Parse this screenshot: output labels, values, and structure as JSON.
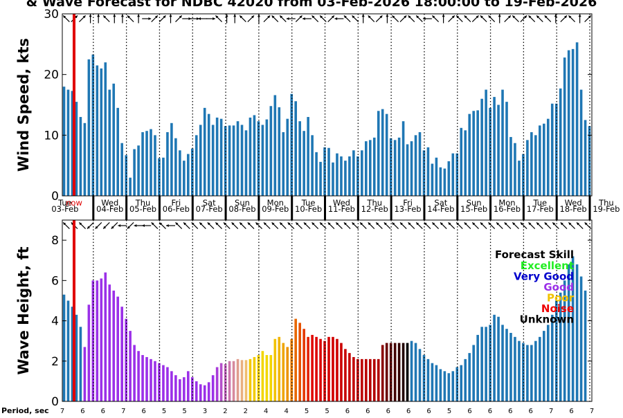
{
  "title": "& Wave Forecast for NDBC 42020 from 03-Feb-2026 18:00:00 to 19-Feb-2026",
  "now_label": "now",
  "period_label": "Period, sec",
  "days": [
    {
      "dow": "Tue",
      "date": "03-Feb"
    },
    {
      "dow": "Wed",
      "date": "04-Feb"
    },
    {
      "dow": "Thu",
      "date": "05-Feb"
    },
    {
      "dow": "Fri",
      "date": "06-Feb"
    },
    {
      "dow": "Sat",
      "date": "07-Feb"
    },
    {
      "dow": "Sun",
      "date": "08-Feb"
    },
    {
      "dow": "Mon",
      "date": "09-Feb"
    },
    {
      "dow": "Tue",
      "date": "10-Feb"
    },
    {
      "dow": "Wed",
      "date": "11-Feb"
    },
    {
      "dow": "Thu",
      "date": "12-Feb"
    },
    {
      "dow": "Fri",
      "date": "13-Feb"
    },
    {
      "dow": "Sat",
      "date": "14-Feb"
    },
    {
      "dow": "Sun",
      "date": "15-Feb"
    },
    {
      "dow": "Mon",
      "date": "16-Feb"
    },
    {
      "dow": "Tue",
      "date": "17-Feb"
    },
    {
      "dow": "Wed",
      "date": "18-Feb"
    },
    {
      "dow": "Thu",
      "date": "19-Feb"
    }
  ],
  "periods": [
    "7",
    "6",
    "6",
    "7",
    "6",
    "5",
    "5",
    "3",
    "2",
    "2",
    "4",
    "4",
    "5",
    "5",
    "6",
    "6",
    "6",
    "6",
    "6",
    "5",
    "6",
    "6",
    "6",
    "6",
    "7",
    "6",
    "7"
  ],
  "legend": {
    "title": "Forecast Skill",
    "items": [
      {
        "label": "Excellent",
        "color": "#22ee22"
      },
      {
        "label": "Very Good",
        "color": "#0000cc"
      },
      {
        "label": "Good",
        "color": "#9b30e8"
      },
      {
        "label": "Poor",
        "color": "#f2c200"
      },
      {
        "label": "Noise",
        "color": "#ee0000"
      },
      {
        "label": "Unknown",
        "color": "#000000"
      }
    ]
  },
  "chart_data": [
    {
      "type": "bar",
      "ylabel": "Wind Speed, kts",
      "ylim": [
        0,
        30
      ],
      "yticks": [
        0,
        10,
        20,
        30
      ],
      "bar_color": "#1f77b4",
      "x_start": "03-Feb-2026 18:00",
      "x_step_hours": 3,
      "values": [
        18,
        17.5,
        17.3,
        15.5,
        13,
        12,
        22.5,
        23.3,
        21.5,
        21,
        22,
        17.5,
        18.5,
        14.5,
        8.7,
        6.7,
        3,
        7.7,
        8.3,
        10.5,
        10.7,
        11,
        10,
        6.2,
        6.3,
        10.5,
        12,
        9.5,
        7.5,
        5.8,
        6.9,
        7.8,
        10,
        11.7,
        14.5,
        13.5,
        11.7,
        12.9,
        12.7,
        11.5,
        11.6,
        11.6,
        12.3,
        11.7,
        10.8,
        12.9,
        13.3,
        12.3,
        11.7,
        12.6,
        14.8,
        16.6,
        14.6,
        10.5,
        12.7,
        16.8,
        15.6,
        12.3,
        10.7,
        13,
        10,
        7.2,
        5.6,
        8,
        7.9,
        5.5,
        7,
        6.5,
        5.8,
        6.5,
        7.5,
        6.5,
        7.5,
        9,
        9.2,
        9.6,
        14,
        14.3,
        13.5,
        9.5,
        9.2,
        9.6,
        12.3,
        8.5,
        9,
        10,
        10.5,
        7.5,
        8,
        5.3,
        6.3,
        4.7,
        4.5,
        5.7,
        7,
        7,
        11.2,
        10.8,
        13.5,
        14,
        14.1,
        16,
        17.5,
        14.5,
        16.3,
        15,
        17.5,
        15.5,
        9.7,
        8.7,
        5.8,
        6.9,
        9.2,
        10.5,
        10,
        11.6,
        11.9,
        12.7,
        15.2,
        15.2,
        17.7,
        22.8,
        24,
        24.2,
        25.3,
        17.5,
        12.5,
        11.5
      ]
    },
    {
      "type": "bar",
      "ylabel": "Wave Height, ft",
      "ylim": [
        0,
        9
      ],
      "yticks": [
        0,
        2,
        4,
        6,
        8
      ],
      "x_start": "03-Feb-2026 18:00",
      "x_step_hours": 3,
      "values": [
        5.3,
        5,
        4.7,
        4.3,
        3.7,
        2.7,
        4.8,
        6,
        6,
        6.1,
        6.4,
        5.8,
        5.5,
        5.2,
        4.7,
        4.1,
        3.5,
        2.8,
        2.5,
        2.3,
        2.2,
        2.1,
        2,
        1.9,
        1.8,
        1.7,
        1.5,
        1.3,
        1.1,
        1.2,
        1.5,
        1.2,
        1,
        0.85,
        0.8,
        0.95,
        1.3,
        1.7,
        1.9,
        1.85,
        2,
        2,
        2.1,
        2.05,
        2.05,
        2.1,
        2.2,
        2.3,
        2.5,
        2.3,
        2.3,
        3.1,
        3.2,
        2.9,
        2.7,
        3.1,
        4.1,
        3.9,
        3.6,
        3.2,
        3.3,
        3.2,
        3.1,
        3,
        3.2,
        3.2,
        3.1,
        2.9,
        2.6,
        2.4,
        2.2,
        2.1,
        2.1,
        2.1,
        2.1,
        2.1,
        2.1,
        2.8,
        2.9,
        2.9,
        2.9,
        2.9,
        2.9,
        2.9,
        3,
        2.9,
        2.6,
        2.3,
        2.1,
        1.9,
        1.8,
        1.6,
        1.5,
        1.4,
        1.5,
        1.7,
        1.8,
        2.1,
        2.4,
        2.8,
        3.3,
        3.7,
        3.7,
        3.8,
        4.3,
        4.2,
        3.8,
        3.6,
        3.4,
        3.2,
        3,
        2.9,
        2.8,
        2.8,
        3,
        3.2,
        3.5,
        3.8,
        4.3,
        5,
        5.4,
        6,
        6.8,
        7.2,
        6.8,
        6.2,
        5.5
      ],
      "skill_colors": [
        "#1f77b4",
        "#1f77b4",
        "#1f77b4",
        "#1f77b4",
        "#1f77b4",
        "#9b30e8",
        "#9b30e8",
        "#9b30e8",
        "#9b30e8",
        "#9b30e8",
        "#9b30e8",
        "#9b30e8",
        "#9b30e8",
        "#9b30e8",
        "#9b30e8",
        "#9b30e8",
        "#9b30e8",
        "#9b30e8",
        "#9b30e8",
        "#9b30e8",
        "#9b30e8",
        "#9b30e8",
        "#9b30e8",
        "#9b30e8",
        "#9b30e8",
        "#9b30e8",
        "#9b30e8",
        "#9b30e8",
        "#9b30e8",
        "#9b30e8",
        "#9b30e8",
        "#9b30e8",
        "#9b30e8",
        "#9b30e8",
        "#9b30e8",
        "#9b30e8",
        "#9b30e8",
        "#a93cd9",
        "#b54fca",
        "#c062bb",
        "#cb76ac",
        "#d6899d",
        "#e09c8e",
        "#e9b07f",
        "#efbe70",
        "#f2c800",
        "#f2cc00",
        "#f2d100",
        "#f2d500",
        "#f2d700",
        "#f2d500",
        "#f2c200",
        "#f0b400",
        "#eea500",
        "#ec9400",
        "#ea7f00",
        "#e86800",
        "#e65000",
        "#e43800",
        "#e22000",
        "#e00800",
        "#dd0000",
        "#da0000",
        "#d70000",
        "#d40000",
        "#d10000",
        "#ce0000",
        "#cb0000",
        "#c80000",
        "#c50000",
        "#c20000",
        "#bf0000",
        "#bc0000",
        "#b90000",
        "#b60000",
        "#b30000",
        "#b00000",
        "#8a0000",
        "#6a0000",
        "#550000",
        "#440000",
        "#330000",
        "#200000",
        "#000000",
        "#1f77b4",
        "#1f77b4",
        "#1f77b4",
        "#1f77b4",
        "#1f77b4",
        "#1f77b4",
        "#1f77b4",
        "#1f77b4",
        "#1f77b4",
        "#1f77b4",
        "#1f77b4",
        "#1f77b4",
        "#1f77b4",
        "#1f77b4",
        "#1f77b4",
        "#1f77b4",
        "#1f77b4",
        "#1f77b4",
        "#1f77b4",
        "#1f77b4",
        "#1f77b4",
        "#1f77b4",
        "#1f77b4",
        "#1f77b4",
        "#1f77b4",
        "#1f77b4",
        "#1f77b4",
        "#1f77b4",
        "#1f77b4",
        "#1f77b4",
        "#1f77b4",
        "#1f77b4",
        "#1f77b4",
        "#1f77b4",
        "#1f77b4",
        "#1f77b4",
        "#1f77b4",
        "#1f77b4",
        "#1f77b4",
        "#1f77b4",
        "#1f77b4",
        "#1f77b4",
        "#1f77b4",
        "#1f77b4"
      ]
    }
  ],
  "wind_dirs": [
    "NW",
    "NE",
    "NE",
    "N",
    "N",
    "NW",
    "N",
    "N",
    "NW",
    "N",
    "E",
    "NE",
    "NE",
    "N",
    "NE",
    "E",
    "E",
    "W",
    "E",
    "NW",
    "N",
    "N",
    "NW",
    "NE",
    "N",
    "NE",
    "NW",
    "NW",
    "W",
    "NE",
    "W",
    "NW",
    "NW",
    "NE",
    "W",
    "NW",
    "NW",
    "N",
    "NW",
    "NE",
    "N",
    "NW",
    "NE",
    "NW",
    "NW",
    "W",
    "NW",
    "N",
    "NE",
    "NW",
    "NW",
    "NE",
    "NW",
    "NW",
    "N",
    "NE",
    "NW",
    "NE",
    "NW",
    "NW",
    "NW",
    "N",
    "NE",
    "NW",
    "N",
    "NE"
  ],
  "wave_dirs": [
    "NW",
    "NW",
    "NW",
    "SW",
    "SW",
    "SW",
    "SW",
    "W",
    "SW",
    "W",
    "W",
    "NW",
    "NW",
    "W",
    "NW",
    "NW",
    "NW",
    "NW",
    "NW",
    "NW",
    "NW",
    "NW",
    "NW",
    "NW",
    "NW",
    "NW",
    "NW",
    "NW",
    "NW",
    "NW",
    "NW",
    "NW",
    "NW",
    "NW",
    "NW",
    "NW",
    "NW",
    "NW",
    "NW",
    "NW",
    "NW",
    "NW",
    "NW",
    "NW",
    "NW",
    "NW",
    "NW",
    "NW",
    "NW",
    "NW",
    "NW",
    "NW",
    "NW",
    "NW",
    "NW",
    "NW",
    "NW",
    "NW",
    "NW",
    "NW",
    "NW",
    "NW",
    "NW",
    "NW",
    "NW",
    "NW"
  ]
}
